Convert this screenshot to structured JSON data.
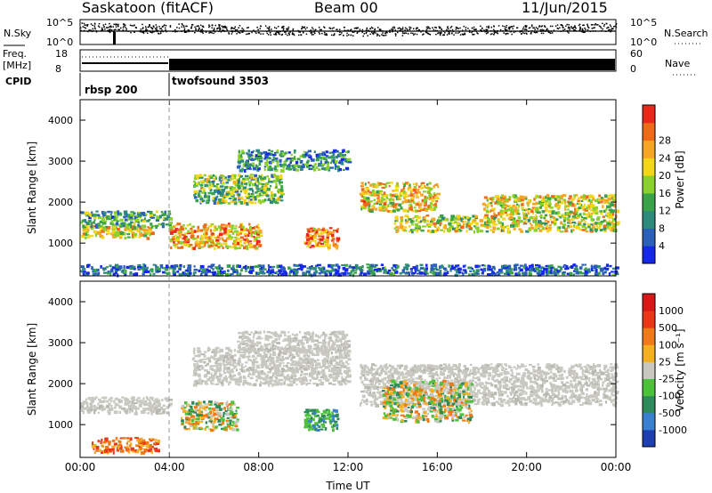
{
  "header": {
    "station": "Saskatoon (fitACF)",
    "beam": "Beam 00",
    "date": "11/Jun/2015"
  },
  "top_panels": {
    "nsky_label": "N.Sky",
    "nsky_ticks": [
      "10^5",
      "10^0"
    ],
    "nsearch_label": "N.Search",
    "freq_label": "Freq.",
    "freq_unit": "[MHz]",
    "freq_ticks": [
      "18",
      "8"
    ],
    "nave_label": "Nave",
    "nave_ticks": [
      "60",
      "0"
    ],
    "cpid_label": "CPID",
    "cpid_modes": [
      {
        "name": "rbsp 200",
        "start_hour": 0
      },
      {
        "name": "twofsound 3503",
        "start_hour": 4
      }
    ]
  },
  "chart_data": [
    {
      "type": "heatmap",
      "panel": "power",
      "ylabel": "Slant Range [km]",
      "xlabel": "",
      "ylim": [
        200,
        4500
      ],
      "yticks": [
        "1000",
        "2000",
        "3000",
        "4000"
      ],
      "colorbar_label": "Power [dB]",
      "colorbar_ticks": [
        "4",
        "8",
        "12",
        "16",
        "20",
        "24",
        "28"
      ],
      "colorbar_colors": [
        "#1428e6",
        "#2c5fb8",
        "#2e8a7a",
        "#3aa34a",
        "#8bd12c",
        "#f2d619",
        "#f5a623",
        "#ef6a18",
        "#e8281a"
      ],
      "bands": [
        {
          "t0": 0.0,
          "t1": 3.2,
          "r0": 1150,
          "r1": 1450,
          "level": 0.65
        },
        {
          "t0": 0.0,
          "t1": 4.0,
          "r0": 1400,
          "r1": 1800,
          "level": 0.35
        },
        {
          "t0": 4.0,
          "t1": 8.0,
          "r0": 900,
          "r1": 1500,
          "level": 0.7
        },
        {
          "t0": 5.0,
          "t1": 9.0,
          "r0": 2000,
          "r1": 2700,
          "level": 0.45
        },
        {
          "t0": 7.0,
          "t1": 12.0,
          "r0": 2800,
          "r1": 3300,
          "level": 0.3
        },
        {
          "t0": 10.0,
          "t1": 11.5,
          "r0": 900,
          "r1": 1400,
          "level": 0.8
        },
        {
          "t0": 12.5,
          "t1": 16.0,
          "r0": 1800,
          "r1": 2500,
          "level": 0.65
        },
        {
          "t0": 14.0,
          "t1": 24.0,
          "r0": 1300,
          "r1": 1700,
          "level": 0.55
        },
        {
          "t0": 18.0,
          "t1": 24.0,
          "r0": 1700,
          "r1": 2200,
          "level": 0.6
        },
        {
          "t0": 0.0,
          "t1": 24.0,
          "r0": 250,
          "r1": 500,
          "level": 0.2
        }
      ]
    },
    {
      "type": "heatmap",
      "panel": "velocity",
      "ylabel": "Slant Range [km]",
      "xlabel": "Time UT",
      "xlim": [
        0,
        24
      ],
      "xticks": [
        "00:00",
        "04:00",
        "08:00",
        "12:00",
        "16:00",
        "20:00",
        "00:00"
      ],
      "ylim": [
        200,
        4500
      ],
      "yticks": [
        "1000",
        "2000",
        "3000",
        "4000"
      ],
      "colorbar_label": "Velocity [m s⁻¹]",
      "colorbar_ticks": [
        "1000",
        "500",
        "100",
        "25",
        "-25",
        "-100",
        "-500",
        "-1000"
      ],
      "colorbar_colors": [
        "#1e3fb0",
        "#3a7fd0",
        "#2e8a5a",
        "#4cc23a",
        "#c8c8c0",
        "#f5b020",
        "#f07a18",
        "#e83818",
        "#d81818"
      ],
      "bands": [
        {
          "t0": 0.0,
          "t1": 4.0,
          "r0": 1300,
          "r1": 1700,
          "class": "ground"
        },
        {
          "t0": 5.0,
          "t1": 12.0,
          "r0": 2000,
          "r1": 2900,
          "class": "ground"
        },
        {
          "t0": 7.0,
          "t1": 12.0,
          "r0": 2800,
          "r1": 3300,
          "class": "ground"
        },
        {
          "t0": 12.5,
          "t1": 24.0,
          "r0": 1500,
          "r1": 2500,
          "class": "ground"
        },
        {
          "t0": 4.5,
          "t1": 7.0,
          "r0": 900,
          "r1": 1600,
          "class": "mixed"
        },
        {
          "t0": 10.0,
          "t1": 11.5,
          "r0": 900,
          "r1": 1400,
          "class": "toward"
        },
        {
          "t0": 13.5,
          "t1": 17.5,
          "r0": 1100,
          "r1": 2100,
          "class": "mixed"
        },
        {
          "t0": 0.5,
          "t1": 3.5,
          "r0": 350,
          "r1": 700,
          "class": "away"
        }
      ]
    }
  ]
}
